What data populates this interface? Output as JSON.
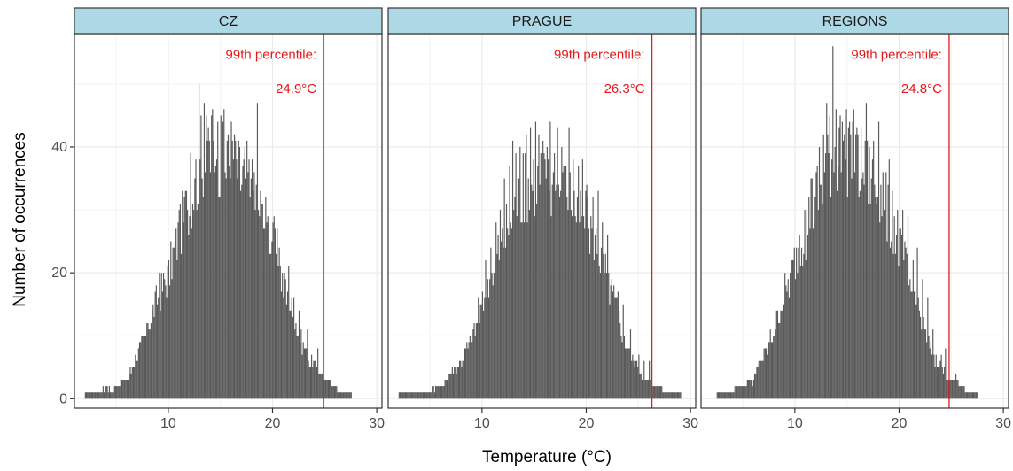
{
  "chart_data": {
    "type": "bar",
    "xlabel": "Temperature (°C)",
    "ylabel": "Number of occurrences",
    "xlim": [
      1.0,
      30.5
    ],
    "ylim": [
      -1.5,
      58
    ],
    "x_ticks": [
      10,
      20,
      30
    ],
    "y_ticks": [
      0,
      20,
      40
    ],
    "grid": true,
    "colors": {
      "bar": "#595959",
      "strip": "#add8e6",
      "threshold": "#e31a1c",
      "grid": "#ebebeb"
    },
    "bin_width": 0.1,
    "panels": [
      {
        "name": "CZ",
        "annotation_line1": "99th percentile:",
        "annotation_line2": "24.9°C",
        "percentile": 24.9,
        "bins": [
          [
            2.0,
            1
          ],
          [
            2.5,
            1
          ],
          [
            3.0,
            1
          ],
          [
            3.5,
            1
          ],
          [
            4.0,
            2
          ],
          [
            4.5,
            1
          ],
          [
            5.0,
            2
          ],
          [
            5.5,
            3
          ],
          [
            6.0,
            3
          ],
          [
            6.5,
            5
          ],
          [
            7.0,
            7
          ],
          [
            7.5,
            9
          ],
          [
            8.0,
            11
          ],
          [
            8.5,
            14
          ],
          [
            9.0,
            16
          ],
          [
            9.5,
            18
          ],
          [
            10.0,
            20
          ],
          [
            10.5,
            23
          ],
          [
            11.0,
            26
          ],
          [
            11.5,
            29
          ],
          [
            12.0,
            32
          ],
          [
            12.5,
            34
          ],
          [
            13.0,
            37
          ],
          [
            13.5,
            38
          ],
          [
            14.0,
            39
          ],
          [
            14.5,
            40
          ],
          [
            15.0,
            38
          ],
          [
            15.5,
            37
          ],
          [
            16.0,
            37
          ],
          [
            16.5,
            36
          ],
          [
            17.0,
            35
          ],
          [
            17.5,
            35
          ],
          [
            18.0,
            33
          ],
          [
            18.5,
            31
          ],
          [
            19.0,
            29
          ],
          [
            19.5,
            27
          ],
          [
            20.0,
            25
          ],
          [
            20.5,
            22
          ],
          [
            21.0,
            18
          ],
          [
            21.5,
            15
          ],
          [
            22.0,
            13
          ],
          [
            22.5,
            10
          ],
          [
            23.0,
            8
          ],
          [
            23.5,
            6
          ],
          [
            24.0,
            5
          ],
          [
            24.5,
            4
          ],
          [
            25.0,
            3
          ],
          [
            25.5,
            3
          ],
          [
            26.0,
            2
          ],
          [
            26.5,
            1
          ],
          [
            27.0,
            1
          ],
          [
            27.5,
            1
          ]
        ],
        "spikes": [
          [
            8.0,
            12
          ],
          [
            8.3,
            10
          ],
          [
            9.1,
            20
          ],
          [
            9.3,
            19
          ],
          [
            10.6,
            25
          ],
          [
            11.0,
            30
          ],
          [
            11.7,
            33
          ],
          [
            12.1,
            39
          ],
          [
            12.5,
            35
          ],
          [
            12.9,
            50
          ],
          [
            13.1,
            45
          ],
          [
            13.4,
            47
          ],
          [
            13.8,
            43
          ],
          [
            14.2,
            46
          ],
          [
            14.6,
            38
          ],
          [
            15.0,
            45
          ],
          [
            15.3,
            46
          ],
          [
            15.6,
            41
          ],
          [
            16.0,
            44
          ],
          [
            16.3,
            42
          ],
          [
            16.7,
            38
          ],
          [
            17.1,
            37
          ],
          [
            17.5,
            41
          ],
          [
            17.9,
            35
          ],
          [
            18.2,
            36
          ],
          [
            18.5,
            47
          ],
          [
            19.0,
            31
          ],
          [
            19.5,
            29
          ],
          [
            20.0,
            28
          ],
          [
            20.6,
            24
          ],
          [
            21.2,
            19
          ],
          [
            21.5,
            21
          ],
          [
            22.0,
            16
          ],
          [
            22.5,
            14
          ],
          [
            23.3,
            11
          ],
          [
            24.0,
            6
          ],
          [
            24.3,
            8
          ]
        ]
      },
      {
        "name": "PRAGUE",
        "annotation_line1": "99th percentile:",
        "annotation_line2": "26.3°C",
        "percentile": 26.3,
        "bins": [
          [
            2.0,
            1
          ],
          [
            3.0,
            1
          ],
          [
            3.5,
            1
          ],
          [
            4.0,
            1
          ],
          [
            4.5,
            1
          ],
          [
            5.0,
            1
          ],
          [
            5.5,
            2
          ],
          [
            6.0,
            2
          ],
          [
            6.5,
            3
          ],
          [
            7.0,
            4
          ],
          [
            7.5,
            5
          ],
          [
            8.0,
            6
          ],
          [
            8.5,
            8
          ],
          [
            9.0,
            10
          ],
          [
            9.5,
            12
          ],
          [
            10.0,
            15
          ],
          [
            10.5,
            17
          ],
          [
            11.0,
            20
          ],
          [
            11.5,
            23
          ],
          [
            12.0,
            25
          ],
          [
            12.5,
            28
          ],
          [
            13.0,
            30
          ],
          [
            13.5,
            32
          ],
          [
            14.0,
            33
          ],
          [
            14.5,
            34
          ],
          [
            15.0,
            35
          ],
          [
            15.5,
            35
          ],
          [
            16.0,
            34
          ],
          [
            16.5,
            34
          ],
          [
            17.0,
            33
          ],
          [
            17.5,
            33
          ],
          [
            18.0,
            33
          ],
          [
            18.5,
            32
          ],
          [
            19.0,
            30
          ],
          [
            19.5,
            29
          ],
          [
            20.0,
            28
          ],
          [
            20.5,
            27
          ],
          [
            21.0,
            24
          ],
          [
            21.5,
            22
          ],
          [
            22.0,
            19
          ],
          [
            22.5,
            16
          ],
          [
            23.0,
            13
          ],
          [
            23.5,
            10
          ],
          [
            24.0,
            8
          ],
          [
            24.5,
            6
          ],
          [
            25.0,
            5
          ],
          [
            25.5,
            3
          ],
          [
            26.0,
            3
          ],
          [
            26.5,
            2
          ],
          [
            27.0,
            2
          ],
          [
            27.5,
            1
          ],
          [
            28.0,
            1
          ],
          [
            28.5,
            1
          ],
          [
            29.0,
            1
          ]
        ],
        "spikes": [
          [
            9.6,
            16
          ],
          [
            10.3,
            22
          ],
          [
            10.8,
            24
          ],
          [
            11.3,
            28
          ],
          [
            11.7,
            30
          ],
          [
            12.1,
            35
          ],
          [
            12.6,
            37
          ],
          [
            12.9,
            41
          ],
          [
            13.2,
            39
          ],
          [
            13.6,
            40
          ],
          [
            13.9,
            39
          ],
          [
            14.2,
            42
          ],
          [
            14.6,
            43
          ],
          [
            14.9,
            38
          ],
          [
            15.1,
            44
          ],
          [
            15.4,
            42
          ],
          [
            15.8,
            41
          ],
          [
            16.2,
            40
          ],
          [
            16.5,
            44
          ],
          [
            16.9,
            39
          ],
          [
            17.2,
            43
          ],
          [
            17.6,
            40
          ],
          [
            17.9,
            37
          ],
          [
            18.3,
            43
          ],
          [
            18.7,
            38
          ],
          [
            19.2,
            37
          ],
          [
            19.6,
            38
          ],
          [
            20.0,
            34
          ],
          [
            20.6,
            32
          ],
          [
            21.1,
            33
          ],
          [
            21.5,
            28
          ],
          [
            22.0,
            26
          ],
          [
            22.6,
            18
          ],
          [
            23.0,
            17
          ],
          [
            23.5,
            15
          ],
          [
            24.2,
            11
          ],
          [
            25.0,
            7
          ],
          [
            25.5,
            6
          ],
          [
            26.0,
            6
          ]
        ]
      },
      {
        "name": "REGIONS",
        "annotation_line1": "99th percentile:",
        "annotation_line2": "24.8°C",
        "percentile": 24.8,
        "bins": [
          [
            2.5,
            1
          ],
          [
            3.0,
            1
          ],
          [
            3.5,
            1
          ],
          [
            4.0,
            1
          ],
          [
            4.5,
            2
          ],
          [
            5.0,
            2
          ],
          [
            5.5,
            3
          ],
          [
            6.0,
            3
          ],
          [
            6.5,
            5
          ],
          [
            7.0,
            7
          ],
          [
            7.5,
            9
          ],
          [
            8.0,
            11
          ],
          [
            8.5,
            14
          ],
          [
            9.0,
            16
          ],
          [
            9.5,
            19
          ],
          [
            10.0,
            22
          ],
          [
            10.5,
            25
          ],
          [
            11.0,
            27
          ],
          [
            11.5,
            30
          ],
          [
            12.0,
            32
          ],
          [
            12.5,
            34
          ],
          [
            13.0,
            36
          ],
          [
            13.5,
            38
          ],
          [
            14.0,
            39
          ],
          [
            14.5,
            40
          ],
          [
            15.0,
            39
          ],
          [
            15.5,
            38
          ],
          [
            16.0,
            37
          ],
          [
            16.5,
            36
          ],
          [
            17.0,
            35
          ],
          [
            17.5,
            34
          ],
          [
            18.0,
            33
          ],
          [
            18.5,
            31
          ],
          [
            19.0,
            29
          ],
          [
            19.5,
            27
          ],
          [
            20.0,
            24
          ],
          [
            20.5,
            21
          ],
          [
            21.0,
            18
          ],
          [
            21.5,
            15
          ],
          [
            22.0,
            13
          ],
          [
            22.5,
            10
          ],
          [
            23.0,
            8
          ],
          [
            23.5,
            6
          ],
          [
            24.0,
            5
          ],
          [
            24.5,
            4
          ],
          [
            25.0,
            3
          ],
          [
            25.5,
            3
          ],
          [
            26.0,
            2
          ],
          [
            26.5,
            1
          ],
          [
            27.0,
            1
          ],
          [
            27.5,
            1
          ]
        ],
        "spikes": [
          [
            8.2,
            12
          ],
          [
            9.0,
            20
          ],
          [
            9.3,
            19
          ],
          [
            10.4,
            26
          ],
          [
            10.9,
            30
          ],
          [
            11.5,
            35
          ],
          [
            12.0,
            36
          ],
          [
            12.3,
            40
          ],
          [
            12.7,
            42
          ],
          [
            13.0,
            47
          ],
          [
            13.3,
            45
          ],
          [
            13.6,
            56
          ],
          [
            13.9,
            46
          ],
          [
            14.2,
            43
          ],
          [
            14.6,
            41
          ],
          [
            14.9,
            46
          ],
          [
            15.2,
            44
          ],
          [
            15.6,
            46
          ],
          [
            16.0,
            42
          ],
          [
            16.3,
            37
          ],
          [
            16.8,
            47
          ],
          [
            17.1,
            38
          ],
          [
            17.5,
            41
          ],
          [
            18.0,
            44
          ],
          [
            18.4,
            36
          ],
          [
            19.0,
            38
          ],
          [
            19.3,
            33
          ],
          [
            19.8,
            30
          ],
          [
            20.3,
            30
          ],
          [
            20.8,
            29
          ],
          [
            21.3,
            22
          ],
          [
            21.7,
            24
          ],
          [
            22.2,
            19
          ],
          [
            22.7,
            16
          ],
          [
            23.2,
            11
          ],
          [
            24.0,
            7
          ],
          [
            24.4,
            8
          ]
        ]
      }
    ]
  }
}
